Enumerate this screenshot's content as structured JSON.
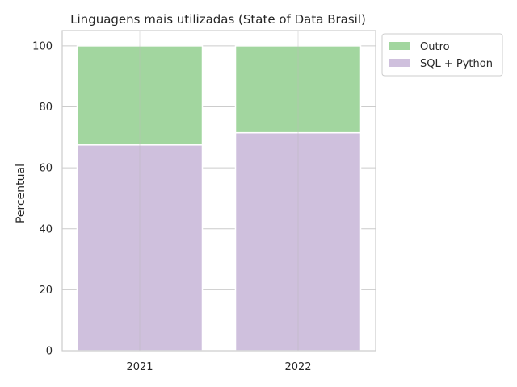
{
  "chart_data": {
    "type": "bar",
    "stacked": true,
    "title": "Linguagens mais utilizadas (State of Data Brasil)",
    "xlabel": "",
    "ylabel": "Percentual",
    "categories": [
      "2021",
      "2022"
    ],
    "series": [
      {
        "name": "SQL + Python",
        "values": [
          67.5,
          71.5
        ],
        "color": "#cfc0dd"
      },
      {
        "name": "Outro",
        "values": [
          32.5,
          28.5
        ],
        "color": "#a2d69f"
      }
    ],
    "ylim": [
      0,
      105
    ],
    "yticks": [
      "0",
      "20",
      "40",
      "60",
      "80",
      "100"
    ],
    "grid": true,
    "legend": {
      "placement": "outside-top-right",
      "order": [
        "Outro",
        "SQL + Python"
      ]
    }
  }
}
